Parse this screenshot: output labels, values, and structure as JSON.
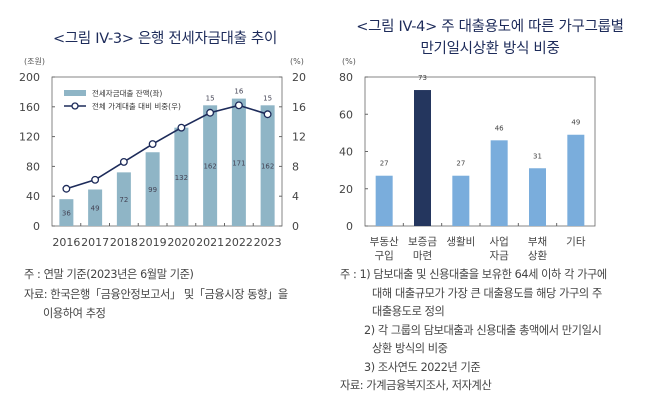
{
  "left_title": "<그림 IV-3> 은행 전세자금대출 추이",
  "right_title_line1": "<그림 IV-4> 주 대출용도에 따른 가구그룹별",
  "right_title_line2": "만기일시상환 방식 비중",
  "chart_data": [
    {
      "type": "bar+line",
      "left_unit": "(조원)",
      "right_unit": "(%)",
      "categories": [
        "2016",
        "2017",
        "2018",
        "2019",
        "2020",
        "2021",
        "2022",
        "2023"
      ],
      "y_left_lim": [
        0,
        200
      ],
      "y_left_ticks": [
        0,
        40,
        80,
        120,
        160,
        200
      ],
      "y_right_lim": [
        0,
        20
      ],
      "y_right_ticks": [
        0,
        4,
        8,
        12,
        16,
        20
      ],
      "series": [
        {
          "name": "전세자금대출 잔액(좌)",
          "type": "bar",
          "axis": "left",
          "values": [
            36,
            49,
            72,
            99,
            132,
            162,
            171,
            162
          ],
          "color": "#8fb5c6"
        },
        {
          "name": "전체 가계대출 대비 비중(우)",
          "type": "line",
          "axis": "right",
          "values": [
            5.0,
            6.2,
            8.6,
            11.0,
            13.2,
            15.2,
            16.2,
            15.0
          ],
          "labels": [
            "",
            "",
            "",
            "",
            "",
            "15",
            "16",
            "15"
          ],
          "color": "#1d2b5a"
        }
      ],
      "legend": "top-left"
    },
    {
      "type": "bar",
      "unit": "(%)",
      "categories": [
        [
          "부동산",
          "구입"
        ],
        [
          "보증금",
          "마련"
        ],
        [
          "생활비"
        ],
        [
          "사업",
          "자금"
        ],
        [
          "부채",
          "상환"
        ],
        [
          "기타"
        ]
      ],
      "values": [
        27,
        73,
        27,
        46,
        31,
        49
      ],
      "ylim": [
        0,
        80
      ],
      "y_ticks": [
        0,
        20,
        40,
        60,
        80
      ],
      "colors": [
        "#7aaddc",
        "#24365e",
        "#7aaddc",
        "#7aaddc",
        "#7aaddc",
        "#7aaddc"
      ]
    }
  ],
  "left_notes": [
    "주   : 연말 기준(2023년은 6월말 기준)",
    "자료: 한국은행「금융안정보고서」 및「금융시장 동향」을",
    "이용하여 추정"
  ],
  "right_notes": [
    "주   : 1) 담보대출 및 신용대출을 보유한 64세 이하 각 가구에",
    "대해 대출규모가 가장 큰 대출용도를 해당 가구의 주",
    "대출용도로 정의",
    "2) 각 그룹의 담보대출과 신용대출 총액에서 만기일시",
    "상환 방식의 비중",
    "3) 조사연도 2022년 기준",
    "자료: 가계금융복지조사, 저자계산"
  ]
}
